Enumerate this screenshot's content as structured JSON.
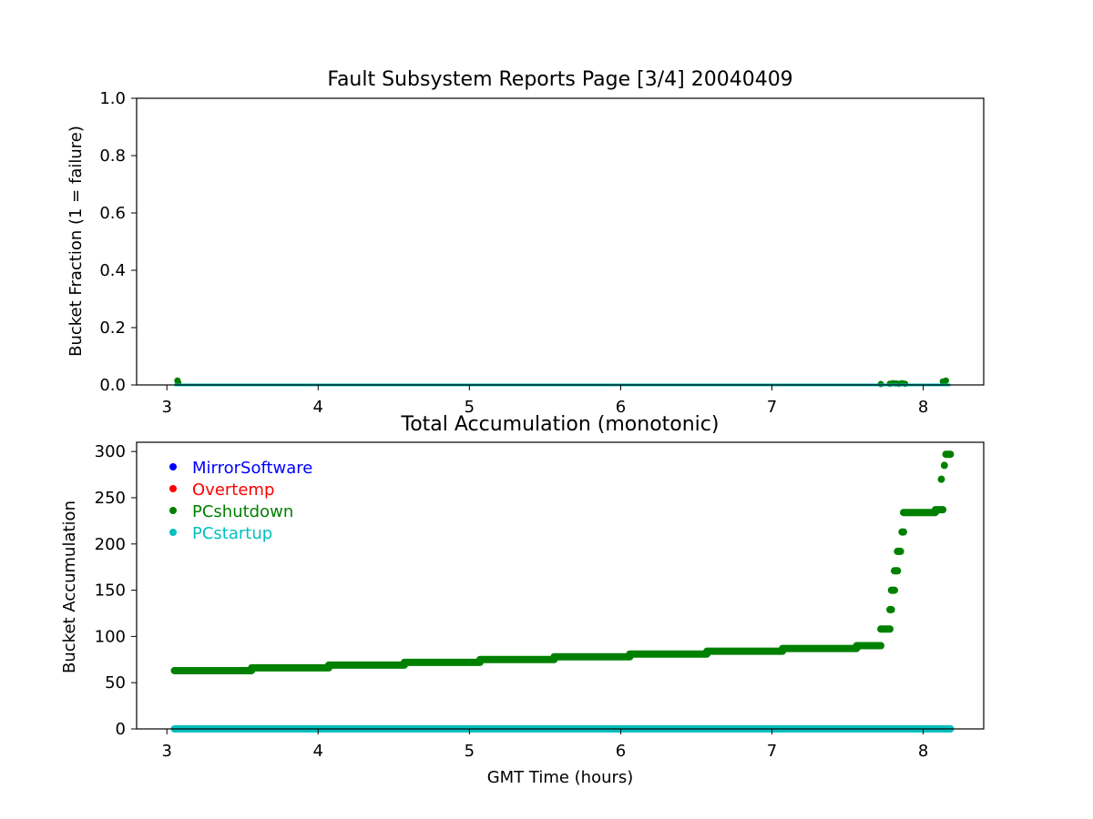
{
  "chart_data": [
    {
      "type": "scatter",
      "title": "Fault Subsystem Reports Page [3/4] 20040409",
      "xlabel": "",
      "ylabel": "Bucket Fraction (1 = failure)",
      "xlim": [
        2.8,
        8.4
      ],
      "ylim": [
        0.0,
        1.0
      ],
      "xticks": [
        3,
        4,
        5,
        6,
        7,
        8
      ],
      "yticks": [
        0.0,
        0.2,
        0.4,
        0.6,
        0.8,
        1.0
      ],
      "ytick_labels": [
        "0.0",
        "0.2",
        "0.4",
        "0.6",
        "0.8",
        "1.0"
      ],
      "grid": false,
      "series": [
        {
          "name": "PCshutdown",
          "color": "#008000",
          "mode": "markers",
          "x": [
            3.07,
            3.075,
            7.72,
            7.78,
            7.8,
            7.82,
            7.84,
            7.86,
            7.88,
            8.13,
            8.15
          ],
          "y": [
            0.015,
            0.008,
            0.003,
            0.004,
            0.006,
            0.005,
            0.004,
            0.006,
            0.004,
            0.012,
            0.015
          ]
        },
        {
          "name": "PCstartup",
          "color": "#00bfbf",
          "mode": "line",
          "x": [
            3.05,
            8.18
          ],
          "y": [
            0.0,
            0.0
          ]
        }
      ]
    },
    {
      "type": "scatter",
      "title": "Total Accumulation (monotonic)",
      "xlabel": "GMT Time (hours)",
      "ylabel": "Bucket Accumulation",
      "xlim": [
        2.8,
        8.4
      ],
      "ylim": [
        0,
        310
      ],
      "xticks": [
        3,
        4,
        5,
        6,
        7,
        8
      ],
      "yticks": [
        0,
        50,
        100,
        150,
        200,
        250,
        300
      ],
      "ytick_labels": [
        "0",
        "50",
        "100",
        "150",
        "200",
        "250",
        "300"
      ],
      "grid": false,
      "legend": {
        "placement": "upper-left",
        "entries": [
          {
            "label": "MirrorSoftware",
            "color": "#0000ff"
          },
          {
            "label": "Overtemp",
            "color": "#ff0000"
          },
          {
            "label": "PCshutdown",
            "color": "#008000"
          },
          {
            "label": "PCstartup",
            "color": "#00bfbf"
          }
        ]
      },
      "series": [
        {
          "name": "MirrorSoftware",
          "color": "#0000ff",
          "segments": []
        },
        {
          "name": "Overtemp",
          "color": "#ff0000",
          "segments": []
        },
        {
          "name": "PCshutdown",
          "color": "#008000",
          "segments": [
            {
              "x0": 3.05,
              "x1": 3.56,
              "y": 63
            },
            {
              "x0": 3.56,
              "x1": 4.07,
              "y": 66
            },
            {
              "x0": 4.07,
              "x1": 4.57,
              "y": 69
            },
            {
              "x0": 4.57,
              "x1": 5.07,
              "y": 72
            },
            {
              "x0": 5.07,
              "x1": 5.56,
              "y": 75
            },
            {
              "x0": 5.56,
              "x1": 6.06,
              "y": 78
            },
            {
              "x0": 6.06,
              "x1": 6.57,
              "y": 81
            },
            {
              "x0": 6.57,
              "x1": 7.07,
              "y": 84
            },
            {
              "x0": 7.07,
              "x1": 7.56,
              "y": 87
            },
            {
              "x0": 7.56,
              "x1": 7.72,
              "y": 90
            },
            {
              "x0": 7.72,
              "x1": 7.78,
              "y": 108
            },
            {
              "x0": 7.78,
              "x1": 7.79,
              "y": 129
            },
            {
              "x0": 7.79,
              "x1": 7.81,
              "y": 150
            },
            {
              "x0": 7.81,
              "x1": 7.83,
              "y": 171
            },
            {
              "x0": 7.83,
              "x1": 7.85,
              "y": 192
            },
            {
              "x0": 7.86,
              "x1": 7.87,
              "y": 213
            },
            {
              "x0": 7.87,
              "x1": 8.08,
              "y": 234
            },
            {
              "x0": 8.08,
              "x1": 8.13,
              "y": 237
            },
            {
              "x0": 8.12,
              "x1": 8.12,
              "y": 270
            },
            {
              "x0": 8.14,
              "x1": 8.14,
              "y": 285
            },
            {
              "x0": 8.15,
              "x1": 8.18,
              "y": 297
            }
          ]
        },
        {
          "name": "PCstartup",
          "color": "#00bfbf",
          "segments": [
            {
              "x0": 3.05,
              "x1": 8.18,
              "y": 0
            }
          ]
        }
      ]
    }
  ]
}
